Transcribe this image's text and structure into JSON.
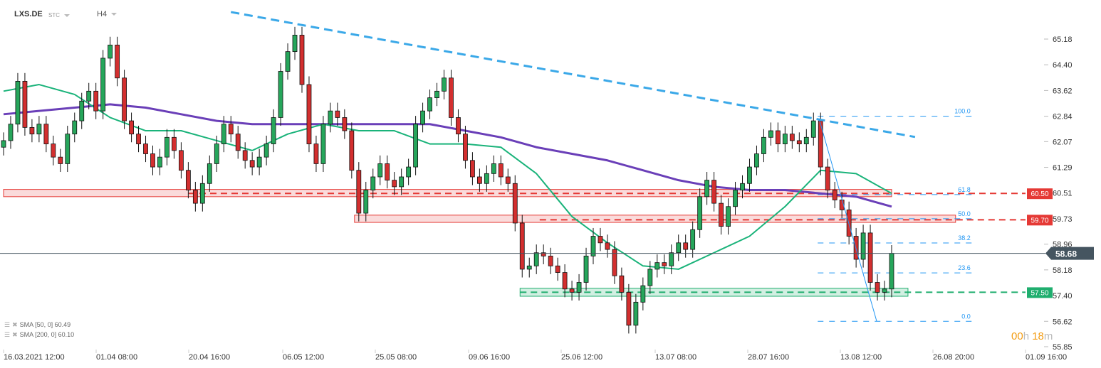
{
  "header": {
    "symbol": "LXS.DE",
    "source": "STC",
    "timeframe": "H4"
  },
  "legend": [
    {
      "label": "SMA [50, 0] 60.49"
    },
    {
      "label": "SMA [200, 0] 60.10"
    }
  ],
  "countdown": {
    "hours": "00",
    "h": "h",
    "minutes": "18",
    "m": "m"
  },
  "colors": {
    "up": "#26a65b",
    "down": "#d32f2f",
    "sma50": "#1ab37a",
    "sma200": "#6a3fb8",
    "trend": "#3aa8e8",
    "resistance": "#e53935",
    "support": "#1fae6e",
    "fib": "#2196f3",
    "price_tag": "#455560"
  },
  "chart_data": {
    "type": "candlestick",
    "ylim": [
      55.85,
      65.18
    ],
    "yticks": [
      "65.18",
      "64.40",
      "63.62",
      "62.84",
      "62.07",
      "61.29",
      "60.51",
      "59.73",
      "58.96",
      "58.18",
      "57.40",
      "56.62",
      "55.85"
    ],
    "xticks": [
      "16.03.2021  12:00",
      "01.04  08:00",
      "20.04  16:00",
      "06.05  12:00",
      "25.05  08:00",
      "09.06  16:00",
      "25.06  12:00",
      "13.07  08:00",
      "28.07  16:00",
      "13.08  12:00",
      "26.08  20:00",
      "01.09  16:00"
    ],
    "closes": [
      62.1,
      62.6,
      63.9,
      62.5,
      62.3,
      62.6,
      62.0,
      61.6,
      61.4,
      62.3,
      62.7,
      63.3,
      63.6,
      63.0,
      64.6,
      65.0,
      64.0,
      62.7,
      62.3,
      62.0,
      61.7,
      61.3,
      61.6,
      62.2,
      61.8,
      61.2,
      60.6,
      60.2,
      60.8,
      61.4,
      62.0,
      62.6,
      62.3,
      61.8,
      61.5,
      61.3,
      61.6,
      62.0,
      62.8,
      64.2,
      64.8,
      65.3,
      63.8,
      62.0,
      61.4,
      62.6,
      63.0,
      62.8,
      62.4,
      61.2,
      59.9,
      60.6,
      61.0,
      61.4,
      60.9,
      60.7,
      61.0,
      61.3,
      62.6,
      63.0,
      63.4,
      63.6,
      64.0,
      62.8,
      62.3,
      61.5,
      61.0,
      60.8,
      61.1,
      61.4,
      61.0,
      60.8,
      59.6,
      58.2,
      58.3,
      58.7,
      58.6,
      58.3,
      58.1,
      57.6,
      57.5,
      57.8,
      58.6,
      59.2,
      59.0,
      58.8,
      58.0,
      57.5,
      56.5,
      57.2,
      57.7,
      58.2,
      58.4,
      58.3,
      58.7,
      59.0,
      58.8,
      59.4,
      60.4,
      60.9,
      60.2,
      59.5,
      60.1,
      60.6,
      60.8,
      61.3,
      61.7,
      62.2,
      62.4,
      62.0,
      62.3,
      62.1,
      62.0,
      62.2,
      62.7,
      61.3,
      60.6,
      60.3,
      60.0,
      59.2,
      58.5,
      59.3,
      57.8,
      57.5,
      57.6,
      58.68
    ],
    "sma50_every5": [
      63.6,
      63.8,
      63.5,
      62.8,
      62.4,
      62.4,
      62.1,
      61.8,
      62.3,
      62.6,
      62.4,
      62.4,
      62.0,
      62.0,
      61.9,
      61.1,
      59.8,
      59.0,
      58.3,
      58.2,
      58.7,
      59.2,
      60.1,
      61.2,
      61.1,
      60.5
    ],
    "sma200_every5": [
      62.9,
      63.0,
      63.1,
      63.2,
      63.1,
      62.9,
      62.7,
      62.6,
      62.6,
      62.6,
      62.6,
      62.6,
      62.6,
      62.4,
      62.2,
      61.9,
      61.7,
      61.5,
      61.2,
      60.9,
      60.7,
      60.6,
      60.6,
      60.5,
      60.4,
      60.1
    ],
    "trendline": {
      "from": {
        "candle": 32,
        "price": 66.0
      },
      "to": {
        "candle": 128.3,
        "price": 62.21
      }
    },
    "zones": [
      {
        "kind": "resistance",
        "low": 60.4,
        "high": 60.62,
        "from_candle": 0,
        "to_candle": 125,
        "level": 60.5,
        "label": "60.50"
      },
      {
        "kind": "resistance",
        "low": 59.62,
        "high": 59.84,
        "from_candle": 49.4,
        "to_candle": 134,
        "level": 59.7,
        "label": "59.70"
      },
      {
        "kind": "support",
        "low": 57.38,
        "high": 57.62,
        "from_candle": 72.7,
        "to_candle": 127.3,
        "level": 57.5,
        "label": "57.50"
      }
    ],
    "fibonacci": {
      "high": 62.84,
      "low": 56.62,
      "from_candle": 114.6,
      "to_candle": 136.3,
      "levels": [
        {
          "ratio": 100.0,
          "label": "100.0"
        },
        {
          "ratio": 61.8,
          "label": "61.8"
        },
        {
          "ratio": 50.0,
          "label": "50.0"
        },
        {
          "ratio": 38.2,
          "label": "38.2"
        },
        {
          "ratio": 23.6,
          "label": "23.6"
        },
        {
          "ratio": 0.0,
          "label": "0.0"
        }
      ]
    },
    "fib_swing": {
      "from": {
        "candle": 114.8,
        "price": 62.75
      },
      "to": {
        "candle": 122.9,
        "price": 56.62
      }
    },
    "last_price": {
      "value": 58.68,
      "label": "58.68"
    }
  }
}
